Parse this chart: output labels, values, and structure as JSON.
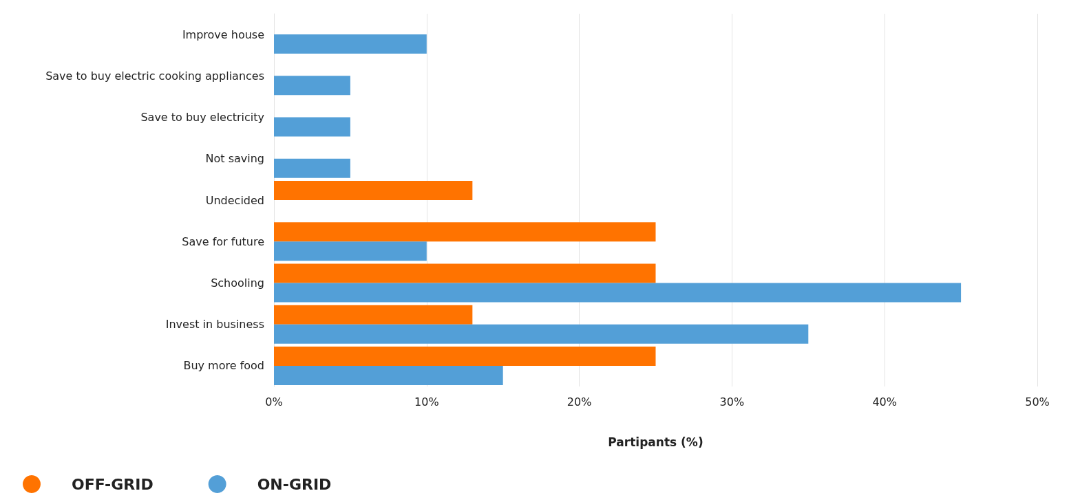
{
  "chart_data": {
    "type": "bar",
    "orientation": "horizontal",
    "xlabel": "Partipants (%)",
    "categories": [
      "Improve house",
      "Save to buy electric cooking appliances",
      "Save to buy electricity",
      "Not saving",
      "Undecided",
      "Save for future",
      "Schooling",
      "Invest in business",
      "Buy more food"
    ],
    "series": [
      {
        "name": "OFF-GRID",
        "color": "#ff7300",
        "values": [
          null,
          null,
          null,
          null,
          13,
          25,
          25,
          13,
          25
        ]
      },
      {
        "name": "ON-GRID",
        "color": "#539fd7",
        "values": [
          10,
          5,
          5,
          5,
          null,
          10,
          45,
          35,
          15
        ]
      }
    ],
    "xlim": [
      0,
      50
    ],
    "xticks": [
      {
        "value": 0,
        "label": "0%"
      },
      {
        "value": 10,
        "label": "10%"
      },
      {
        "value": 20,
        "label": "20%"
      },
      {
        "value": 30,
        "label": "30%"
      },
      {
        "value": 40,
        "label": "40%"
      },
      {
        "value": 50,
        "label": "50%"
      }
    ],
    "grid": "x",
    "legend": "bottom left"
  }
}
